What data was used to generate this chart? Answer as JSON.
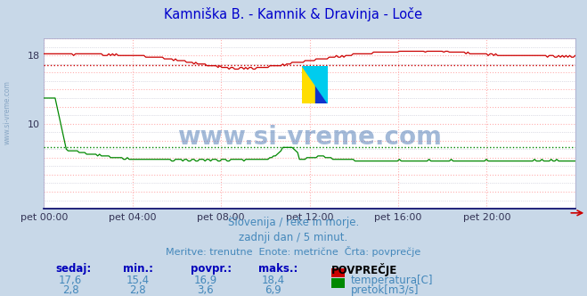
{
  "title": "Kamniška B. - Kamnik & Dravinja - Loče",
  "title_color": "#0000cc",
  "bg_color": "#c8d8e8",
  "plot_bg_color": "#ffffff",
  "grid_color_pink": "#ffb0b0",
  "grid_color_gray": "#c0c0d0",
  "text_color": "#4488bb",
  "watermark": "www.si-vreme.com",
  "watermark_color": "#3366aa",
  "subtitle1": "Slovenija / reke in morje.",
  "subtitle2": "zadnji dan / 5 minut.",
  "subtitle3": "Meritve: trenutne  Enote: metrične  Črta: povprečje",
  "temp_color": "#cc0000",
  "flow_color": "#008800",
  "avg_temp": 16.9,
  "avg_flow": 3.6,
  "n_points": 288,
  "temp_min": 15.4,
  "temp_max": 18.4,
  "temp_avg": 16.9,
  "temp_current": 17.6,
  "flow_min": 2.8,
  "flow_max": 6.9,
  "flow_avg": 3.6,
  "flow_current": 2.8,
  "xtick_labels": [
    "pet 00:00",
    "pet 04:00",
    "pet 08:00",
    "pet 12:00",
    "pet 16:00",
    "pet 20:00"
  ],
  "footer_labels": [
    "sedaj:",
    "min.:",
    "povpr.:",
    "maks.:"
  ],
  "footer_temp": [
    "17,6",
    "15,4",
    "16,9",
    "18,4"
  ],
  "footer_flow": [
    "2,8",
    "2,8",
    "3,6",
    "6,9"
  ],
  "legend_temp": "temperatura[C]",
  "legend_flow": "pretok[m3/s]",
  "legend_header": "POVPREČJE",
  "ymax": 20,
  "ytick_vals": [
    10,
    18
  ]
}
